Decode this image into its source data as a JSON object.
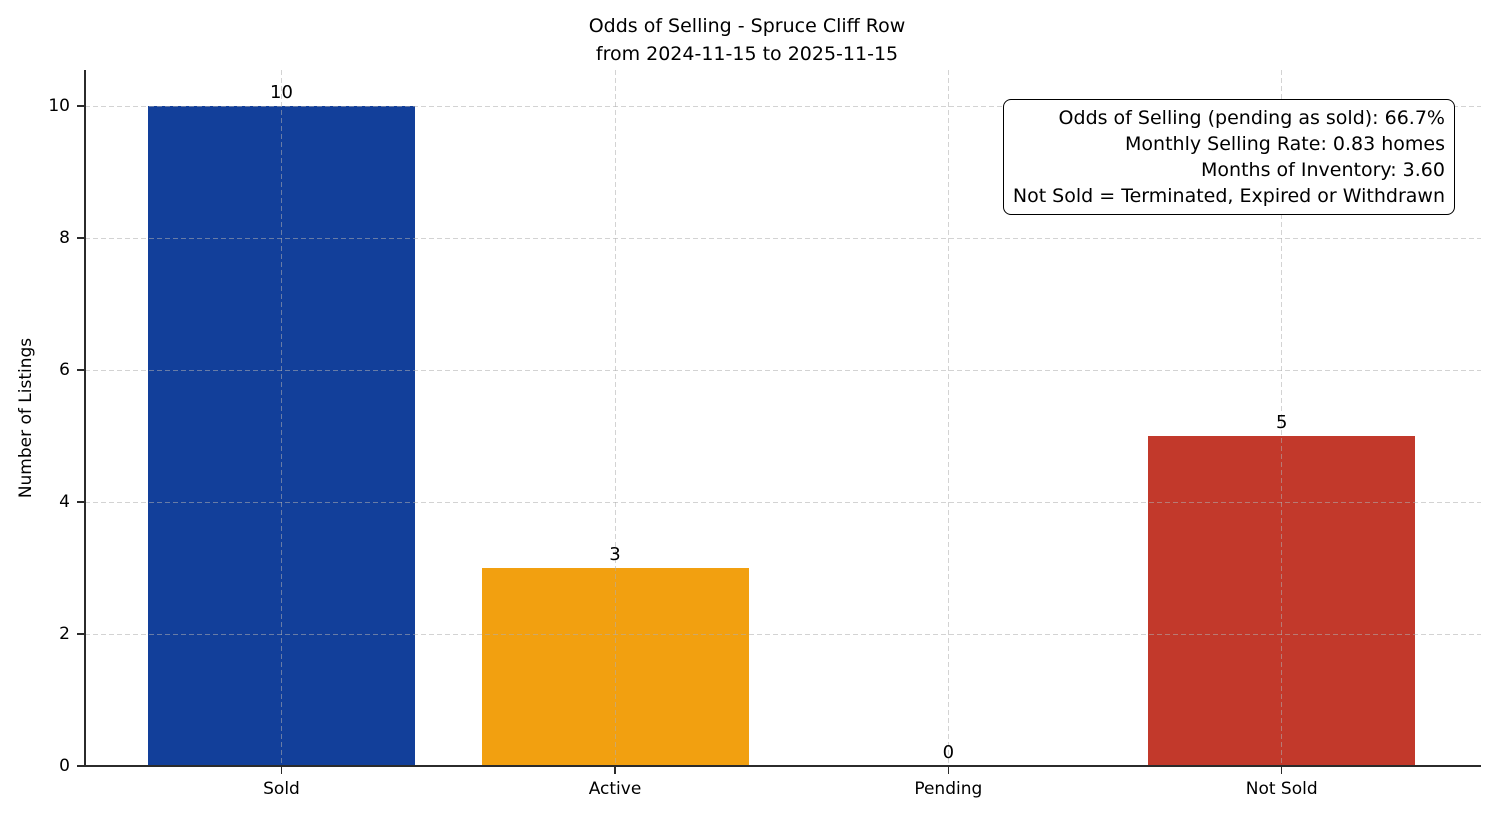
{
  "chart_data": {
    "type": "bar",
    "title": "Odds of Selling - Spruce Cliff Row",
    "subtitle": "from 2024-11-15 to 2025-11-15",
    "categories": [
      "Sold",
      "Active",
      "Pending",
      "Not Sold"
    ],
    "values": [
      10,
      3,
      0,
      5
    ],
    "value_labels": [
      "10",
      "3",
      "0",
      "5"
    ],
    "bar_colors": [
      "#123f9a",
      "#f2a010",
      null,
      "#c2392b"
    ],
    "xlabel": "",
    "ylabel": "Number of Listings",
    "ylim": [
      0,
      10.55
    ],
    "yticks": [
      0,
      2,
      4,
      6,
      8,
      10
    ],
    "grid": "dashed, horizontal and vertical, drawn over bars",
    "legend_position": "none",
    "annotation": {
      "lines": [
        "Odds of Selling (pending as sold): 66.7%",
        "Monthly Selling Rate: 0.83 homes",
        "Months of Inventory: 3.60",
        "Not Sold = Terminated, Expired or Withdrawn"
      ]
    },
    "colors": {
      "sold_bar": "#123f9a",
      "active_bar": "#f2a010",
      "not_sold_bar": "#c2392b",
      "grid": "#d7d7d7",
      "spine": "#2b2b2b",
      "text": "#000000",
      "background": "#ffffff"
    }
  }
}
